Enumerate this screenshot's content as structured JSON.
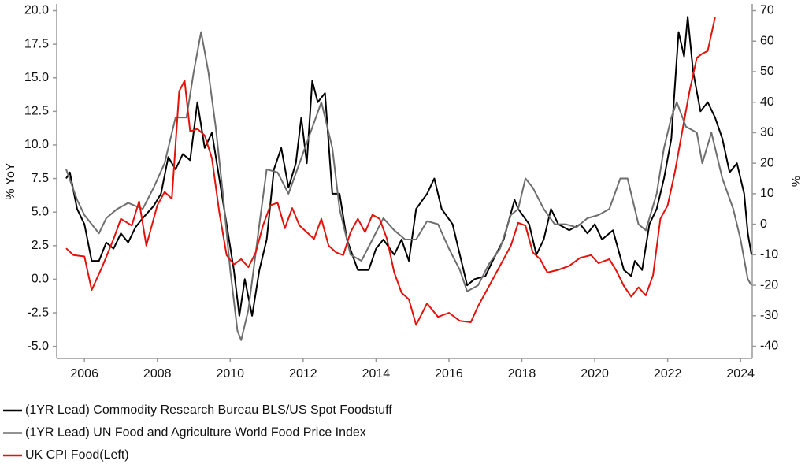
{
  "chart_data": {
    "type": "line",
    "y_label": "% YoY",
    "y2_label": "%",
    "xlim": [
      2005.24,
      2024.32
    ],
    "xticks": [
      2006,
      2008,
      2010,
      2012,
      2014,
      2016,
      2018,
      2020,
      2022,
      2024
    ],
    "ylim": [
      -5.9,
      20.5
    ],
    "yticks": [
      {
        "value": 20,
        "label": "20.0"
      },
      {
        "value": 17.5,
        "label": "17.5"
      },
      {
        "value": 15,
        "label": "15.0"
      },
      {
        "value": 12.5,
        "label": "12.5"
      },
      {
        "value": 10,
        "label": "10.0"
      },
      {
        "value": 7.5,
        "label": "7.5"
      },
      {
        "value": 5,
        "label": "5.0"
      },
      {
        "value": 2.5,
        "label": "2.5"
      },
      {
        "value": 0,
        "label": "0.0"
      },
      {
        "value": -2.5,
        "label": "-2.5"
      },
      {
        "value": -5,
        "label": "-5.0"
      }
    ],
    "y2lim": [
      -44,
      72.2
    ],
    "y2ticks": [
      70,
      60,
      50,
      40,
      30,
      20,
      10,
      0,
      -10,
      -20,
      -30,
      -40
    ],
    "series": [
      {
        "name": "(1YR Lead) Commodity Research Bureau BLS/US Spot Foodstuff",
        "color": "#000000",
        "axis": "y2",
        "x": [
          2005.5,
          2005.6,
          2005.8,
          2006.0,
          2006.2,
          2006.4,
          2006.6,
          2006.8,
          2007.0,
          2007.2,
          2007.4,
          2007.6,
          2007.9,
          2008.1,
          2008.3,
          2008.5,
          2008.7,
          2008.9,
          2009.1,
          2009.3,
          2009.5,
          2009.7,
          2009.9,
          2010.1,
          2010.25,
          2010.4,
          2010.6,
          2010.8,
          2011.0,
          2011.2,
          2011.4,
          2011.6,
          2011.8,
          2011.95,
          2012.1,
          2012.25,
          2012.4,
          2012.6,
          2012.8,
          2013.0,
          2013.2,
          2013.5,
          2013.8,
          2014.0,
          2014.2,
          2014.5,
          2014.7,
          2014.9,
          2015.1,
          2015.4,
          2015.6,
          2015.8,
          2016.1,
          2016.3,
          2016.5,
          2016.7,
          2017.0,
          2017.2,
          2017.5,
          2017.8,
          2017.9,
          2018.2,
          2018.4,
          2018.6,
          2018.8,
          2019.0,
          2019.3,
          2019.6,
          2019.8,
          2020.0,
          2020.2,
          2020.5,
          2020.8,
          2021.0,
          2021.1,
          2021.3,
          2021.5,
          2021.7,
          2021.9,
          2022.1,
          2022.3,
          2022.45,
          2022.55,
          2022.7,
          2022.9,
          2023.1,
          2023.3,
          2023.5,
          2023.7,
          2023.9,
          2024.1,
          2024.2,
          2024.3
        ],
        "values": [
          15,
          17,
          5,
          0,
          -12,
          -12,
          -6,
          -8,
          -3,
          -6,
          -1,
          2,
          6,
          10,
          22,
          18,
          23,
          21,
          40,
          25,
          30,
          15,
          0,
          -15,
          -30,
          -18,
          -30,
          -15,
          -5,
          18,
          25,
          12,
          20,
          35,
          20,
          47,
          40,
          43,
          10,
          10,
          -5,
          -15,
          -15,
          -8,
          -5,
          -10,
          -5,
          -12,
          5,
          10,
          15,
          5,
          0,
          -10,
          -20,
          -18,
          -17,
          -12,
          -5,
          8,
          5,
          0,
          -10,
          -5,
          5,
          0,
          -2,
          0,
          -3,
          0,
          -5,
          -2,
          -15,
          -17,
          -12,
          -15,
          0,
          5,
          15,
          28,
          63,
          55,
          68,
          50,
          37,
          40,
          35,
          28,
          17,
          20,
          10,
          -3,
          -10
        ]
      },
      {
        "name": "(1YR Lead) UN Food and Agriculture World Food Price Index",
        "color": "#6e6e6e",
        "axis": "y2",
        "x": [
          2005.5,
          2005.8,
          2006.0,
          2006.2,
          2006.4,
          2006.6,
          2006.9,
          2007.2,
          2007.6,
          2007.9,
          2008.2,
          2008.5,
          2008.8,
          2009.0,
          2009.2,
          2009.4,
          2009.6,
          2009.8,
          2010.0,
          2010.2,
          2010.3,
          2010.5,
          2010.8,
          2011.0,
          2011.3,
          2011.6,
          2011.9,
          2012.2,
          2012.5,
          2012.8,
          2013.0,
          2013.3,
          2013.6,
          2013.9,
          2014.2,
          2014.5,
          2014.8,
          2015.1,
          2015.4,
          2015.7,
          2016.0,
          2016.3,
          2016.5,
          2016.8,
          2017.1,
          2017.4,
          2017.7,
          2017.9,
          2018.1,
          2018.3,
          2018.6,
          2018.9,
          2019.2,
          2019.5,
          2019.8,
          2020.1,
          2020.4,
          2020.7,
          2020.9,
          2021.2,
          2021.4,
          2021.7,
          2021.9,
          2022.1,
          2022.25,
          2022.5,
          2022.8,
          2022.95,
          2023.2,
          2023.5,
          2023.8,
          2024.0,
          2024.2,
          2024.3
        ],
        "values": [
          18,
          8,
          3,
          0,
          -3,
          2,
          5,
          7,
          5,
          12,
          20,
          35,
          35,
          50,
          63,
          50,
          32,
          10,
          -15,
          -35,
          -38,
          -28,
          0,
          18,
          17,
          10,
          20,
          30,
          40,
          25,
          5,
          -10,
          -12,
          -5,
          2,
          -2,
          -5,
          -5,
          1,
          0,
          -8,
          -15,
          -22,
          -20,
          -13,
          -8,
          3,
          5,
          15,
          12,
          5,
          0,
          0,
          -1,
          2,
          3,
          5,
          15,
          15,
          0,
          -2,
          10,
          25,
          35,
          40,
          32,
          30,
          20,
          30,
          15,
          5,
          -5,
          -18,
          -20
        ]
      },
      {
        "name": "UK CPI Food(Left)",
        "color": "#e3120b",
        "axis": "y",
        "x": [
          2005.5,
          2005.7,
          2006.0,
          2006.2,
          2006.5,
          2006.8,
          2007.0,
          2007.3,
          2007.5,
          2007.7,
          2008.0,
          2008.2,
          2008.4,
          2008.6,
          2008.75,
          2008.9,
          2009.1,
          2009.3,
          2009.5,
          2009.7,
          2009.9,
          2010.1,
          2010.3,
          2010.5,
          2010.7,
          2010.9,
          2011.1,
          2011.3,
          2011.5,
          2011.7,
          2011.9,
          2012.1,
          2012.3,
          2012.5,
          2012.7,
          2012.9,
          2013.1,
          2013.3,
          2013.5,
          2013.7,
          2013.9,
          2014.1,
          2014.3,
          2014.5,
          2014.7,
          2014.9,
          2015.1,
          2015.4,
          2015.7,
          2016.0,
          2016.3,
          2016.6,
          2016.8,
          2017.1,
          2017.4,
          2017.7,
          2017.9,
          2018.1,
          2018.3,
          2018.5,
          2018.7,
          2019.0,
          2019.3,
          2019.6,
          2019.9,
          2020.1,
          2020.4,
          2020.6,
          2020.8,
          2021.0,
          2021.2,
          2021.4,
          2021.6,
          2021.8,
          2022.0,
          2022.2,
          2022.4,
          2022.6,
          2022.8,
          2022.95,
          2023.1,
          2023.3
        ],
        "values": [
          2.3,
          1.8,
          1.7,
          -0.8,
          1.0,
          3.0,
          4.5,
          4.0,
          5.8,
          2.5,
          5.5,
          6.5,
          6.0,
          14.0,
          14.8,
          11.0,
          11.2,
          10.7,
          9.0,
          5.0,
          1.8,
          1.1,
          1.5,
          0.9,
          2.0,
          4.0,
          5.5,
          5.7,
          3.8,
          5.3,
          4.0,
          3.5,
          3.0,
          4.5,
          2.5,
          2.0,
          1.8,
          3.5,
          4.5,
          3.5,
          4.8,
          4.5,
          3.0,
          0.5,
          -1.0,
          -1.5,
          -3.4,
          -1.8,
          -2.8,
          -2.5,
          -3.1,
          -3.2,
          -2.0,
          -0.5,
          1.0,
          2.5,
          4.2,
          4.0,
          2.0,
          1.5,
          0.5,
          0.7,
          1.0,
          1.6,
          1.8,
          1.2,
          1.5,
          0.6,
          -0.5,
          -1.3,
          -0.6,
          -1.2,
          0.3,
          4.5,
          5.5,
          8.0,
          11.0,
          14.0,
          16.5,
          16.8,
          17.0,
          19.5
        ]
      }
    ]
  }
}
